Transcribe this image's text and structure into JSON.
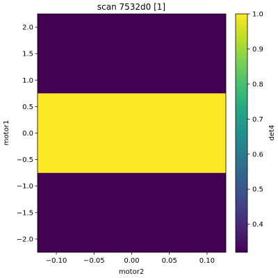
{
  "chart_data": {
    "type": "heatmap",
    "title": "scan 7532d0 [1]",
    "xlabel": "motor2",
    "ylabel": "motor1",
    "colorbar_label": "det4",
    "xlim": [
      -0.125,
      0.125
    ],
    "ylim": [
      -2.25,
      2.25
    ],
    "x_ticks": [
      -0.1,
      -0.05,
      0.0,
      0.05,
      0.1
    ],
    "x_tick_labels": [
      "−0.10",
      "−0.05",
      "0.00",
      "0.05",
      "0.10"
    ],
    "y_ticks": [
      -2.0,
      -1.5,
      -1.0,
      -0.5,
      0.0,
      0.5,
      1.0,
      1.5,
      2.0
    ],
    "y_tick_labels": [
      "−2.0",
      "−1.5",
      "−1.0",
      "−0.5",
      "0.0",
      "0.5",
      "1.0",
      "1.5",
      "2.0"
    ],
    "colorbar_range": [
      0.32,
      1.0
    ],
    "colorbar_ticks": [
      0.4,
      0.5,
      0.6,
      0.7,
      0.8,
      0.9,
      1.0
    ],
    "colorbar_tick_labels": [
      "0.4",
      "0.5",
      "0.6",
      "0.7",
      "0.8",
      "0.9",
      "1.0"
    ],
    "colormap": "viridis",
    "rows": [
      {
        "y0": -2.25,
        "y1": -0.75,
        "value": 0.32
      },
      {
        "y0": -0.75,
        "y1": 0.75,
        "value": 1.0
      },
      {
        "y0": 0.75,
        "y1": 2.25,
        "value": 0.32
      }
    ]
  }
}
